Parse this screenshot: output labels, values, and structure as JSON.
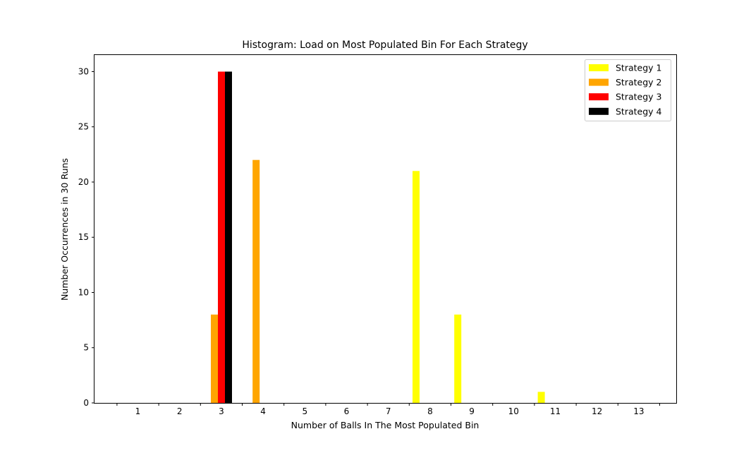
{
  "chart_data": {
    "type": "bar",
    "title": "Histogram: Load on Most Populated Bin For Each Strategy",
    "xlabel": "Number of Balls In The Most Populated Bin",
    "ylabel": "Number Occurrences in 30 Runs",
    "ylim": [
      0,
      31.5
    ],
    "yticks": [
      0,
      5,
      10,
      15,
      20,
      25,
      30
    ],
    "categories": [
      "1",
      "2",
      "3",
      "4",
      "5",
      "6",
      "7",
      "8",
      "9",
      "10",
      "11",
      "12",
      "13"
    ],
    "grid": false,
    "legend_position": "top-right",
    "series": [
      {
        "name": "Strategy 1",
        "color": "#ffff00",
        "values": [
          0,
          0,
          0,
          0,
          0,
          0,
          0,
          21,
          8,
          0,
          1,
          0,
          0
        ]
      },
      {
        "name": "Strategy 2",
        "color": "#ffa500",
        "values": [
          0,
          0,
          8,
          22,
          0,
          0,
          0,
          0,
          0,
          0,
          0,
          0,
          0
        ]
      },
      {
        "name": "Strategy 3",
        "color": "#ff0000",
        "values": [
          0,
          0,
          30,
          0,
          0,
          0,
          0,
          0,
          0,
          0,
          0,
          0,
          0
        ]
      },
      {
        "name": "Strategy 4",
        "color": "#000000",
        "values": [
          0,
          0,
          30,
          0,
          0,
          0,
          0,
          0,
          0,
          0,
          0,
          0,
          0
        ]
      }
    ]
  }
}
